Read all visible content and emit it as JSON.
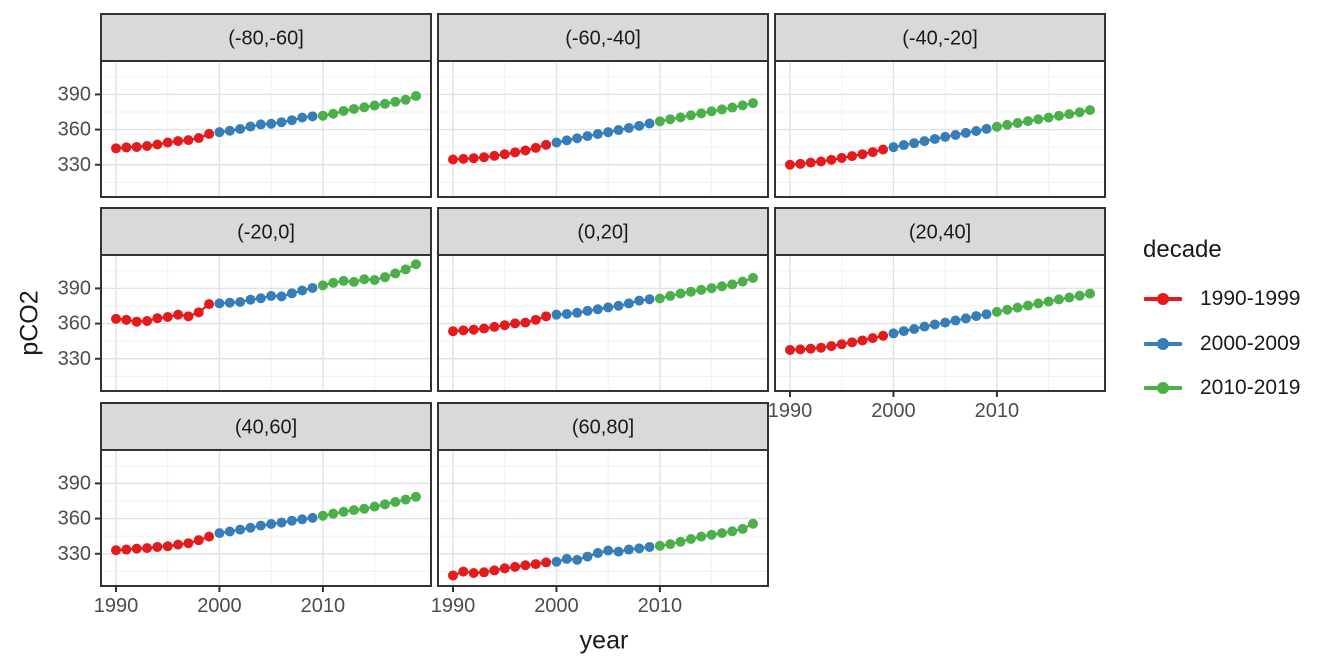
{
  "figure": {
    "background": "#FFFFFF",
    "y_axis": {
      "title": "pCO2",
      "ticks": [
        390,
        360,
        330
      ]
    },
    "x_axis": {
      "title": "year",
      "ticks": [
        1990,
        2000,
        2010
      ]
    },
    "legend": {
      "title": "decade",
      "entries": [
        {
          "label": "1990-1999",
          "color": "#E41A1C"
        },
        {
          "label": "2000-2009",
          "color": "#377EB8"
        },
        {
          "label": "2010-2019",
          "color": "#4DAF4A"
        }
      ]
    },
    "theme": {
      "strip_fill": "#D9D9D9",
      "strip_text_color": "#1A1A1A",
      "panel_fill": "#FFFFFF",
      "panel_border_color": "#333333",
      "grid_major_color": "#E2E2E2",
      "grid_minor_color": "#F0F0F0",
      "tick_mark_color": "#333333",
      "tick_label_color": "#4D4D4D"
    }
  },
  "chart_data": {
    "type": "scatter",
    "title": "",
    "xlabel": "year",
    "ylabel": "pCO2",
    "facet_variable": "latitude band",
    "grid": true,
    "legend_position": "right",
    "legend_title": "decade",
    "x_ticks": [
      1990,
      2000,
      2010
    ],
    "x_minor_ticks": [
      1995,
      2005,
      2015
    ],
    "y_ticks": [
      330,
      360,
      390
    ],
    "y_minor_ticks": [
      315,
      345,
      375,
      405
    ],
    "xlim": [
      1988.55,
      2020.45
    ],
    "ylim": [
      302.5,
      418.5
    ],
    "x": [
      1990,
      1991,
      1992,
      1993,
      1994,
      1995,
      1996,
      1997,
      1998,
      1999,
      2000,
      2001,
      2002,
      2003,
      2004,
      2005,
      2006,
      2007,
      2008,
      2009,
      2010,
      2011,
      2012,
      2013,
      2014,
      2015,
      2016,
      2017,
      2018,
      2019
    ],
    "series_groups": [
      {
        "name": "1990-1999",
        "year_start": 1990,
        "year_end": 1999,
        "color": "#E41A1C"
      },
      {
        "name": "2000-2009",
        "year_start": 2000,
        "year_end": 2009,
        "color": "#377EB8"
      },
      {
        "name": "2010-2019",
        "year_start": 2010,
        "year_end": 2019,
        "color": "#4DAF4A"
      }
    ],
    "facets": [
      {
        "label": "(-80,-60]",
        "values": [
          344.0,
          344.8,
          345.2,
          346.0,
          347.3,
          349.0,
          350.2,
          351.0,
          352.8,
          356.3,
          357.8,
          359.0,
          360.5,
          362.6,
          364.4,
          365.0,
          366.3,
          368.0,
          370.2,
          371.3,
          371.8,
          373.5,
          375.9,
          377.6,
          379.0,
          380.5,
          382.0,
          383.7,
          385.4,
          388.6
        ]
      },
      {
        "label": "(-60,-40]",
        "values": [
          334.5,
          335.0,
          335.6,
          336.4,
          337.6,
          339.0,
          340.6,
          342.2,
          344.4,
          347.0,
          349.0,
          350.8,
          352.6,
          354.4,
          356.2,
          357.8,
          359.6,
          361.4,
          363.2,
          365.2,
          367.0,
          368.8,
          370.4,
          372.2,
          373.8,
          375.6,
          377.2,
          378.8,
          380.6,
          382.6
        ]
      },
      {
        "label": "(-40,-20]",
        "values": [
          330.0,
          330.8,
          331.8,
          332.8,
          334.2,
          335.8,
          337.4,
          339.0,
          340.8,
          343.0,
          345.0,
          346.8,
          348.4,
          350.2,
          352.0,
          353.8,
          355.4,
          357.2,
          358.8,
          360.6,
          362.4,
          364.0,
          365.6,
          367.2,
          368.8,
          370.2,
          371.8,
          373.2,
          374.8,
          376.6
        ]
      },
      {
        "label": "(-20,0]",
        "values": [
          364.0,
          363.2,
          361.6,
          362.2,
          364.6,
          365.6,
          367.6,
          366.2,
          369.6,
          376.6,
          377.2,
          377.8,
          378.4,
          380.4,
          381.6,
          383.6,
          383.2,
          385.8,
          388.2,
          390.4,
          392.6,
          394.8,
          396.4,
          395.6,
          397.8,
          397.2,
          399.6,
          402.8,
          406.2,
          410.6
        ]
      },
      {
        "label": "(0,20]",
        "values": [
          353.5,
          354.2,
          354.8,
          355.8,
          357.2,
          358.6,
          360.2,
          360.8,
          363.2,
          366.2,
          367.6,
          368.2,
          369.2,
          370.8,
          372.2,
          373.8,
          375.2,
          377.2,
          379.6,
          380.8,
          381.4,
          383.6,
          385.6,
          387.2,
          388.8,
          390.2,
          391.8,
          393.4,
          395.8,
          399.0
        ]
      },
      {
        "label": "(20,40]",
        "values": [
          337.5,
          338.0,
          338.6,
          339.4,
          340.8,
          342.4,
          344.0,
          345.6,
          347.6,
          349.6,
          351.6,
          353.6,
          355.4,
          357.4,
          359.2,
          360.8,
          362.6,
          364.4,
          366.4,
          368.0,
          370.0,
          371.8,
          373.6,
          375.4,
          377.2,
          378.8,
          380.6,
          382.2,
          383.8,
          385.6
        ]
      },
      {
        "label": "(40,60]",
        "values": [
          333.0,
          333.6,
          334.4,
          334.8,
          335.8,
          336.4,
          337.8,
          339.0,
          341.6,
          344.6,
          347.6,
          349.0,
          350.6,
          352.2,
          354.0,
          355.4,
          356.6,
          358.2,
          359.4,
          360.6,
          362.4,
          364.2,
          365.8,
          367.2,
          368.4,
          370.2,
          372.2,
          374.2,
          376.2,
          378.6
        ]
      },
      {
        "label": "(60,80]",
        "values": [
          311.5,
          314.8,
          313.6,
          314.2,
          315.8,
          317.6,
          318.8,
          320.2,
          321.2,
          322.6,
          323.2,
          325.6,
          324.8,
          327.6,
          330.6,
          332.8,
          331.8,
          333.6,
          334.6,
          335.8,
          336.8,
          338.2,
          340.2,
          342.6,
          344.6,
          346.2,
          347.6,
          349.2,
          351.2,
          355.6
        ]
      }
    ]
  }
}
